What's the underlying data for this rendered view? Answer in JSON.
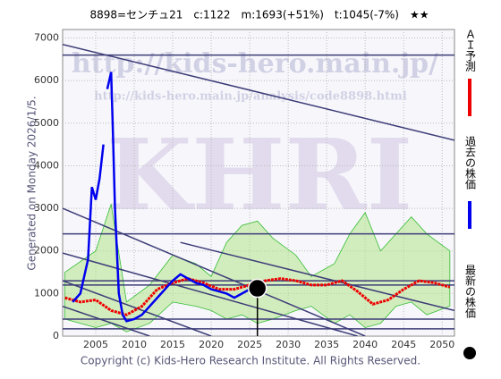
{
  "chart_data": {
    "type": "line",
    "title": "8898=センチュ21　c:1122　m:1693(+51%)　t:1045(-7%)　★★",
    "side_label": "Generated on Monday 2026/1/5.",
    "watermarks": [
      "http://kids-hero.main.jp/",
      "http://kids-hero.main.jp/analysis/code8898.html",
      "KHRI"
    ],
    "footer": "Copyright (c) Kids-Hero Research Institute. All Rights Reserved.",
    "xlim": [
      2000.7,
      2051.6
    ],
    "ylim": [
      0,
      7200
    ],
    "xticks": [
      2005,
      2010,
      2015,
      2020,
      2025,
      2030,
      2035,
      2040,
      2045,
      2050
    ],
    "yticks": [
      0,
      1000,
      2000,
      3000,
      4000,
      5000,
      6000,
      7000
    ],
    "grid": true,
    "band": {
      "color": "#b5e68a",
      "x": [
        2001,
        2005,
        2007,
        2009,
        2012,
        2015,
        2018,
        2020,
        2022,
        2024,
        2026,
        2028,
        2031,
        2033,
        2036,
        2038,
        2040,
        2042,
        2044,
        2046,
        2048,
        2051
      ],
      "high": [
        1500,
        2000,
        3100,
        800,
        1200,
        1900,
        1700,
        1400,
        2200,
        2600,
        2700,
        2300,
        1900,
        1400,
        1700,
        2400,
        2900,
        2000,
        2400,
        2800,
        2400,
        2000
      ],
      "low": [
        400,
        200,
        300,
        100,
        300,
        800,
        700,
        600,
        400,
        500,
        300,
        400,
        600,
        700,
        300,
        500,
        200,
        300,
        700,
        800,
        500,
        700
      ]
    },
    "hlines": {
      "color": "#3c3c78",
      "values": [
        6600,
        2400,
        1300,
        1200,
        400,
        170
      ]
    },
    "trendlines": [
      {
        "x": [
          2000.7,
          2051.6
        ],
        "values": [
          6850,
          4600
        ]
      },
      {
        "x": [
          2000.7,
          2040
        ],
        "values": [
          3000,
          0
        ]
      },
      {
        "x": [
          2000.7,
          2039
        ],
        "values": [
          1950,
          0
        ]
      },
      {
        "x": [
          2000.7,
          2020
        ],
        "values": [
          1300,
          0
        ]
      },
      {
        "x": [
          2000.7,
          2012
        ],
        "values": [
          700,
          0
        ]
      },
      {
        "x": [
          2016,
          2051.6
        ],
        "values": [
          2200,
          600
        ]
      }
    ],
    "trend_color": "#3c3c78",
    "series": [
      {
        "name": "ＡＩ予測",
        "color": "#ee0000",
        "x": [
          2001,
          2003,
          2005,
          2007,
          2009,
          2011,
          2013,
          2015,
          2017,
          2019,
          2021,
          2023,
          2025,
          2027,
          2029,
          2031,
          2033,
          2035,
          2037,
          2039,
          2041,
          2043,
          2045,
          2047,
          2049,
          2051
        ],
        "values": [
          900,
          800,
          850,
          600,
          500,
          700,
          1100,
          1250,
          1350,
          1250,
          1100,
          1100,
          1200,
          1300,
          1350,
          1300,
          1200,
          1200,
          1300,
          1050,
          750,
          850,
          1100,
          1300,
          1250,
          1150
        ]
      },
      {
        "name": "過去の株価",
        "color": "#0000ee",
        "x": [
          2002,
          2003,
          2004,
          2004.5,
          2005,
          2005.5,
          2006,
          2006.3,
          2006.5,
          2007,
          2007.2,
          2007.5,
          2008,
          2008.5,
          2009,
          2010,
          2011,
          2012,
          2013,
          2014,
          2015,
          2016,
          2017,
          2018,
          2019,
          2020,
          2021,
          2022,
          2023,
          2024,
          2025
        ],
        "values": [
          800,
          1000,
          1800,
          3500,
          3200,
          3700,
          4500,
          null,
          5800,
          6200,
          5000,
          3000,
          1000,
          500,
          350,
          400,
          500,
          700,
          900,
          1100,
          1300,
          1450,
          1350,
          1250,
          1200,
          1100,
          1050,
          1000,
          900,
          1000,
          1100
        ]
      }
    ],
    "latest": {
      "name": "最新の株価",
      "color": "#000000",
      "x": 2026,
      "value": 1122
    }
  }
}
